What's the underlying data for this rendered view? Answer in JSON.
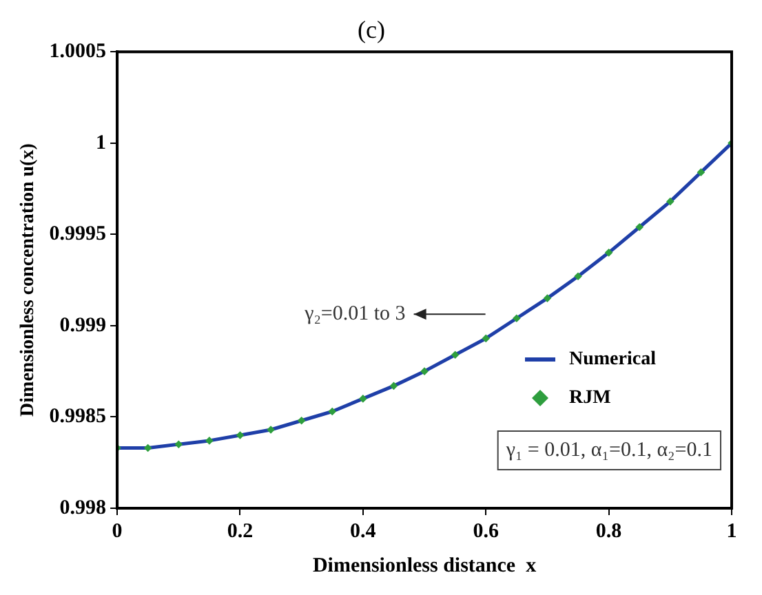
{
  "chart_data": {
    "type": "line",
    "title": "(c)",
    "xlabel": "Dimensionless distance  x",
    "ylabel": "Dimensionless concentration u(x)",
    "x": [
      0,
      0.05,
      0.1,
      0.15,
      0.2,
      0.25,
      0.3,
      0.35,
      0.4,
      0.45,
      0.5,
      0.55,
      0.6,
      0.65,
      0.7,
      0.75,
      0.8,
      0.85,
      0.9,
      0.95,
      1
    ],
    "series": [
      {
        "name": "Numerical",
        "color": "#1f3fa8",
        "marker": "none",
        "line_style": "solid",
        "values": [
          0.99833,
          0.99833,
          0.99835,
          0.99837,
          0.9984,
          0.99843,
          0.99848,
          0.99853,
          0.9986,
          0.99867,
          0.99875,
          0.99884,
          0.99893,
          0.99904,
          0.99915,
          0.99927,
          0.9994,
          0.99954,
          0.99968,
          0.99984,
          1
        ]
      },
      {
        "name": "RJM",
        "type": "scatter",
        "color": "#2e9e3e",
        "marker": "diamond",
        "values": [
          0.99833,
          0.99833,
          0.99835,
          0.99837,
          0.9984,
          0.99843,
          0.99848,
          0.99853,
          0.9986,
          0.99867,
          0.99875,
          0.99884,
          0.99893,
          0.99904,
          0.99915,
          0.99927,
          0.9994,
          0.99954,
          0.99968,
          0.99984,
          1
        ]
      }
    ],
    "xlim": [
      0,
      1
    ],
    "xticks": [
      0,
      0.2,
      0.4,
      0.6,
      0.8,
      1
    ],
    "ylim": [
      0.998,
      1.0005
    ],
    "yticks": [
      0.998,
      0.9985,
      0.999,
      0.9995,
      1,
      1.0005
    ],
    "grid": false,
    "legend": "bottom right",
    "annotations": [
      "γ₂=0.01 to 3",
      "γ₁ = 0.01, α₁=0.1, α₂=0.1"
    ]
  }
}
